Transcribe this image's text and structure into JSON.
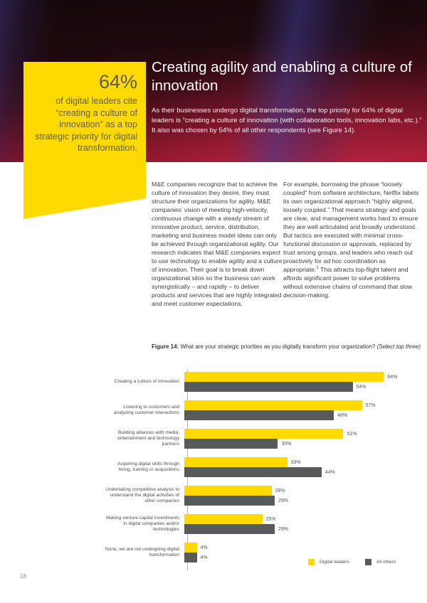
{
  "page": {
    "number": "18"
  },
  "colors": {
    "accent_yellow": "#FFDA00",
    "bar_yellow": "#FFD900",
    "bar_gray": "#58595B",
    "hero_red": "#A31A30"
  },
  "callout": {
    "stat": "64%",
    "text": "of digital leaders cite “creating a culture of innovation” as a top strategic priority for digital transformation."
  },
  "hero": {
    "title": "Creating agility and enabling a culture of innovation",
    "intro": "As their businesses undergo digital transformation, the top priority for 64% of digital leaders is “creating a culture of innovation (with collaboration tools, innovation labs, etc.).” It also was chosen by 54% of all other respondents (see Figure 14)."
  },
  "body": {
    "col1": "M&E companies recognize that to achieve the culture of innovation they desire, they must structure their organizations for agility. M&E companies’ vision of meeting high-velocity, continuous change with a steady stream of innovative product, service, distribution, marketing and business model ideas can only be achieved through organizational agility. Our research indicates that M&E companies expect to use technology to enable agility and a culture of innovation. Their goal is to break down organizational silos so the business can work synergistically – and rapidly – to deliver products and services that are highly integrated and meet customer expectations.",
    "col2_pre": "For example, borrowing the phrase “loosely coupled” from software architecture, Netflix labels its own organizational approach “highly aligned, loosely coupled.” That means strategy and goals are clear, and management works hard to ensure they are well articulated and broadly understood. But tactics are executed with minimal cross-functional discussion or approvals, replaced by trust among groups, and leaders who reach out proactively for ad hoc coordination as appropriate.",
    "footnote_marker": "1",
    "col2_post": " This attracts top-flight talent and affords significant power to solve problems without extensive chains of command that slow decision-making."
  },
  "figure": {
    "label": "Figure 14:",
    "question": " What are your strategic priorities as you digitally transform your organization? ",
    "note": "(Select top three)"
  },
  "chart_data": {
    "type": "bar",
    "orientation": "horizontal",
    "title": "Figure 14: What are your strategic priorities as you digitally transform your organization? (Select top three)",
    "categories": [
      "Creating a culture of innovation",
      "Listening to customers and analyzing customer interactions",
      "Building alliances with media, entertainment and technology partners",
      "Acquiring digital skills through hiring, training or acquisitions",
      "Undertaking competitive analysis to understand the digital activities of other companies",
      "Making venture capital investments in digital companies and/or technologies",
      "None, we are not undergoing digital transformation"
    ],
    "series": [
      {
        "name": "Digital leaders",
        "color": "#FFD900",
        "values": [
          64,
          57,
          51,
          33,
          28,
          25,
          4
        ]
      },
      {
        "name": "All others",
        "color": "#58595B",
        "values": [
          54,
          48,
          30,
          44,
          29,
          29,
          4
        ]
      }
    ],
    "value_suffix": "%",
    "xlim": [
      0,
      70
    ],
    "grid": false,
    "legend_position": "bottom-right"
  }
}
